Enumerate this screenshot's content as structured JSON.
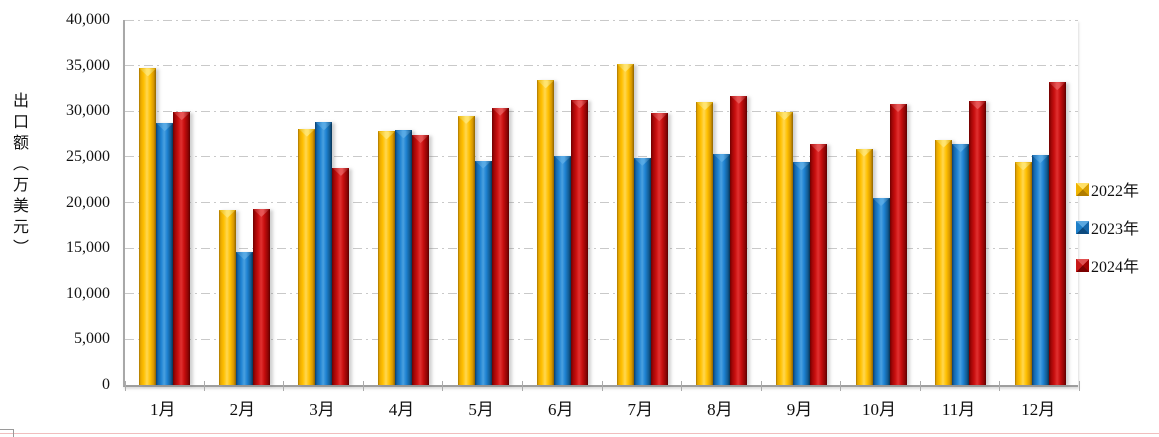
{
  "chart_data": {
    "type": "bar",
    "title": "",
    "xlabel": "",
    "ylabel": "出口额（万美元）",
    "ylim": [
      0,
      40000
    ],
    "ytick_step": 5000,
    "ytick_labels": [
      "0",
      "5,000",
      "10,000",
      "15,000",
      "20,000",
      "25,000",
      "30,000",
      "35,000",
      "40,000"
    ],
    "grid": "horizontal dash-dot",
    "legend_position": "right",
    "categories": [
      "1月",
      "2月",
      "3月",
      "4月",
      "5月",
      "6月",
      "7月",
      "8月",
      "9月",
      "10月",
      "11月",
      "12月"
    ],
    "series": [
      {
        "name": "2022年",
        "color": "#FFC000",
        "values": [
          34700,
          19200,
          28100,
          27800,
          29500,
          33400,
          35200,
          31000,
          29900,
          25900,
          26900,
          24400
        ]
      },
      {
        "name": "2023年",
        "color": "#1E82D2",
        "values": [
          28700,
          14600,
          28800,
          27900,
          24600,
          25100,
          24900,
          25300,
          24400,
          20500,
          26400,
          25200
        ]
      },
      {
        "name": "2024年",
        "color": "#C00000",
        "values": [
          29900,
          19300,
          23800,
          27400,
          30400,
          31200,
          29800,
          31700,
          26400,
          30800,
          31100,
          33200
        ]
      }
    ]
  },
  "colors": {
    "axis": "#9e9e9e",
    "gridline": "#c9c9c9",
    "text": "#141414",
    "bottom_rule": "#f1bebe"
  }
}
